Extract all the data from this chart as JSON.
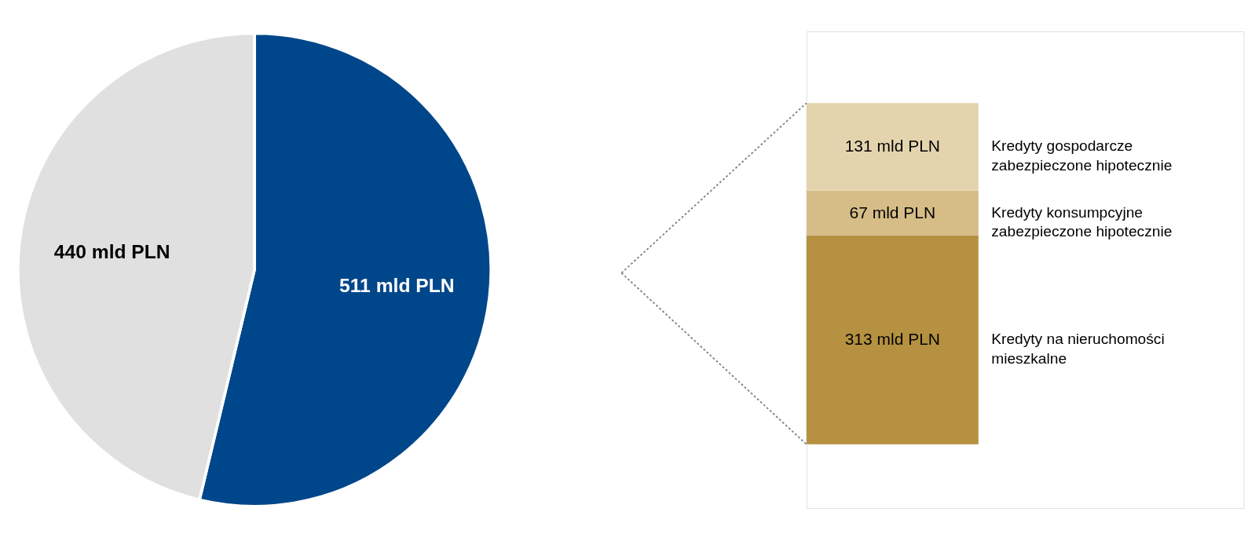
{
  "chart_data": [
    {
      "type": "pie",
      "categories": [
        null,
        null
      ],
      "values": [
        511,
        440
      ],
      "colors": [
        "#00468b",
        "#e0e0e0"
      ],
      "value_labels": [
        "511 mld PLN",
        "440 mld PLN"
      ]
    },
    {
      "type": "bar",
      "stacked": true,
      "categories": [
        null
      ],
      "series": [
        {
          "name": "Kredyty na nieruchomości mieszkalne",
          "color": "#b59141",
          "values": [
            313
          ],
          "value_labels": [
            "313 mld PLN"
          ]
        },
        {
          "name": "Kredyty konsumpcyjne zabezpieczone hipotecznie",
          "color": "#d6bd87",
          "values": [
            67
          ],
          "value_labels": [
            "67 mld PLN"
          ]
        },
        {
          "name": "Kredyty gospodarcze zabezpieczone hipotecznie",
          "color": "#e4d4ae",
          "values": [
            131
          ],
          "value_labels": [
            "131 mld PLN"
          ]
        }
      ]
    }
  ]
}
